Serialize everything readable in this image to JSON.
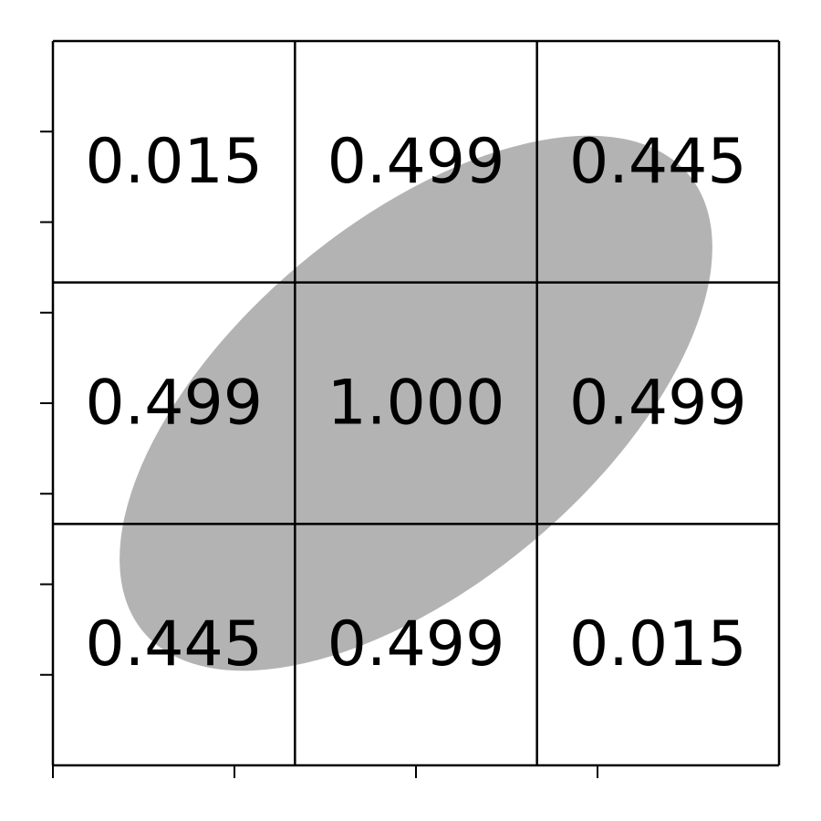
{
  "chart_data": {
    "type": "heatmap",
    "rows": 3,
    "cols": 3,
    "values": [
      [
        "0.015",
        "0.499",
        "0.445"
      ],
      [
        "0.499",
        "1.000",
        "0.499"
      ],
      [
        "0.445",
        "0.499",
        "0.015"
      ]
    ],
    "xlim": [
      0,
      4
    ],
    "ylim": [
      0,
      4
    ],
    "xticks": [
      0,
      1,
      2,
      3
    ],
    "yticks": [
      0.5,
      1,
      1.5,
      2,
      2.5,
      3,
      3.5
    ],
    "tick_labels_visible": false,
    "grid": true,
    "ellipse": {
      "center": [
        2.0,
        2.0
      ],
      "semi_major": 1.96,
      "semi_minor": 1.0,
      "angle_deg": 40,
      "color": "#b3b3b3"
    },
    "colors": {
      "line": "#000000",
      "background": "#ffffff",
      "text": "#000000"
    }
  }
}
